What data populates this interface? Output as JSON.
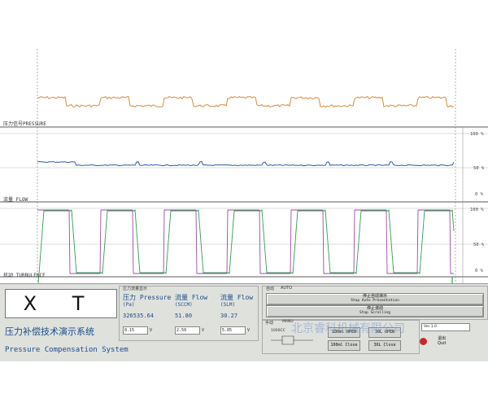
{
  "scope": {
    "labels": {
      "pressure": "压力信号PRESSURE",
      "flow": "流量 FLOW",
      "turbulence": "扰动 TURBULENCE"
    },
    "percents": [
      "100 %",
      "50 %",
      "0 %",
      "100 %",
      "50 %",
      "0 %"
    ],
    "colors": {
      "pressure": "#d88a3c",
      "flow": "#2b5fa8",
      "flow_b": "#2e9e52",
      "turb_a": "#a14aa8",
      "turb_b": "#2e9e52"
    }
  },
  "display": {
    "logo_text": "X T"
  },
  "titles": {
    "cn": "压力补偿技术演示系统",
    "en": "Pressure Compensation System"
  },
  "readout": {
    "caption": "压力流量显示",
    "pressure": {
      "h1": "压力 Pressure",
      "h2": "(Pa)",
      "value": "326535.64",
      "input": "0.15",
      "unit": "V"
    },
    "flow_sccm": {
      "h1": "流量 Flow",
      "h2": "(SCCM)",
      "value": "51.80",
      "input": "2.59",
      "unit": "V"
    },
    "flow_slm": {
      "h1": "流量 Flow",
      "h2": "(SLM)",
      "value": "30.27",
      "input": "5.05",
      "unit": "V"
    }
  },
  "auto": {
    "caption": "自动",
    "caption2": "AUTO",
    "btn1": {
      "l1": "停止自动演示",
      "l2": "Stop Auto Presentation"
    },
    "btn2": {
      "l1": "停止滚动",
      "l2": "Stop Scrolling"
    }
  },
  "manual": {
    "caption": "手动",
    "caption2": "MANU",
    "sub": "1000CC",
    "btn_a1": "100ml OPEN",
    "btn_a2": "30L OPEN",
    "btn_b1": "100ml Close",
    "btn_b2": "30L Close"
  },
  "watermark": "北京睿科机械有限公司",
  "side": {
    "version": "Ver 1.0",
    "quit_l1": "退出",
    "quit_l2": "Quit"
  }
}
